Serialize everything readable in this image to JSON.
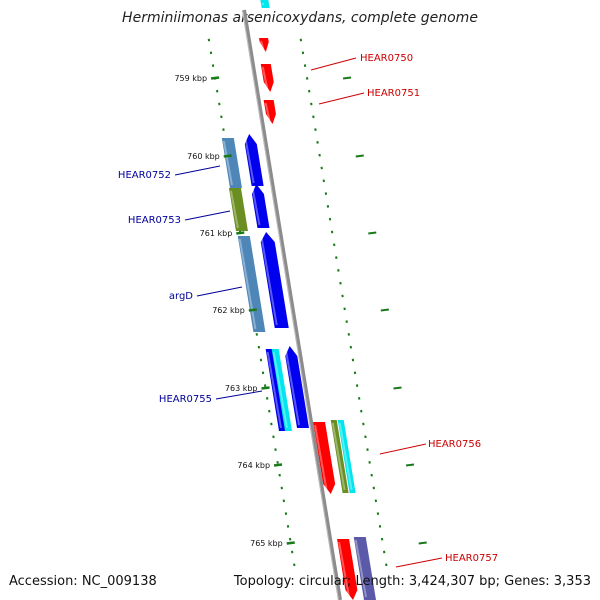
{
  "title": "Herminiimonas arsenicoxydans, complete genome",
  "footer": {
    "accession": "Accession: NC_009138",
    "summary": "Topology: circular; Length: 3,424,307 bp; Genes: 3,353"
  },
  "colors": {
    "forward_label": "#cc0000",
    "reverse_label": "#000099",
    "backbone": "#8c8c8c",
    "tick": "#1a7a1a",
    "red": "#ff0000",
    "blue": "#0000ee",
    "steelblue": "#4f86b8",
    "olive": "#6b8e23",
    "cyan": "#00e5ee",
    "slate": "#5a5aa8"
  },
  "ticks": [
    "759 kbp",
    "760 kbp",
    "761 kbp",
    "762 kbp",
    "763 kbp",
    "764 kbp",
    "765 kbp"
  ],
  "genes": [
    {
      "name": "HEAR0750",
      "strand": "forward"
    },
    {
      "name": "HEAR0751",
      "strand": "forward"
    },
    {
      "name": "HEAR0752",
      "strand": "reverse"
    },
    {
      "name": "HEAR0753",
      "strand": "reverse"
    },
    {
      "name": "argD",
      "strand": "reverse"
    },
    {
      "name": "HEAR0755",
      "strand": "reverse"
    },
    {
      "name": "HEAR0756",
      "strand": "forward"
    },
    {
      "name": "HEAR0757",
      "strand": "forward"
    }
  ]
}
